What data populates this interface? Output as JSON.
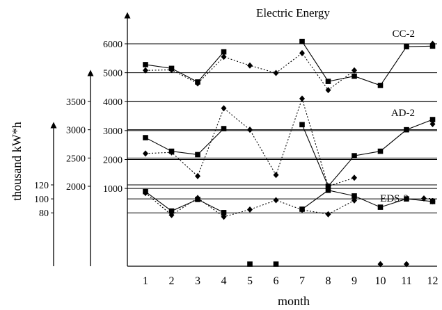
{
  "chart_data": {
    "type": "line",
    "title": "Electric Energy",
    "xlabel": "month",
    "ylabel": "thousand kW*h",
    "x": [
      1,
      2,
      3,
      4,
      5,
      6,
      7,
      8,
      9,
      10,
      11,
      12
    ],
    "grid": true,
    "colors": {
      "line": "#000000",
      "background": "#ffffff"
    },
    "panels": [
      {
        "label": "CC-2",
        "axis_ticks": [
          "1000",
          "2000",
          "3000",
          "4000",
          "5000",
          "6000"
        ],
        "ylim": [
          1000,
          6000
        ],
        "series": [
          {
            "marker": "square",
            "style": "solid",
            "values": [
              5280,
              5150,
              4680,
              5720,
              null,
              null,
              6080,
              4700,
              4880,
              4560,
              5900,
              5920
            ]
          },
          {
            "marker": "diamond",
            "style": "dotted",
            "values": [
              5080,
              5100,
              4630,
              5550,
              5250,
              4990,
              5680,
              4400,
              5080,
              null,
              null,
              6000
            ]
          }
        ]
      },
      {
        "label": "AD-2",
        "axis_ticks": [
          "2000",
          "2500",
          "3000",
          "3500"
        ],
        "ylim": [
          1600,
          4000
        ],
        "series": [
          {
            "marker": "square",
            "style": "solid",
            "values": [
              2860,
              2620,
              2560,
              3020,
              null,
              null,
              3090,
              2000,
              2540,
              2620,
              3000,
              3180
            ]
          },
          {
            "marker": "diamond",
            "style": "dotted",
            "values": [
              2580,
              2600,
              2180,
              3380,
              3000,
              2200,
              3550,
              2000,
              2150,
              null,
              null,
              3100
            ]
          }
        ]
      },
      {
        "label": "EDS-2",
        "axis_ticks": [
          "80",
          "100",
          "120"
        ],
        "ylim": [
          60,
          130
        ],
        "series": [
          {
            "marker": "square",
            "style": "solid",
            "values": [
              110.4,
              82.6,
              99.2,
              80.4,
              60,
              60,
              85.2,
              112.3,
              104.2,
              88.1,
              100,
              96.2
            ]
          },
          {
            "marker": "diamond",
            "style": "dotted",
            "values": [
              108.5,
              76.9,
              101.2,
              74.4,
              84.7,
              98.1,
              84.4,
              78,
              97.8,
              60,
              60,
              96.5
            ]
          }
        ]
      }
    ]
  }
}
